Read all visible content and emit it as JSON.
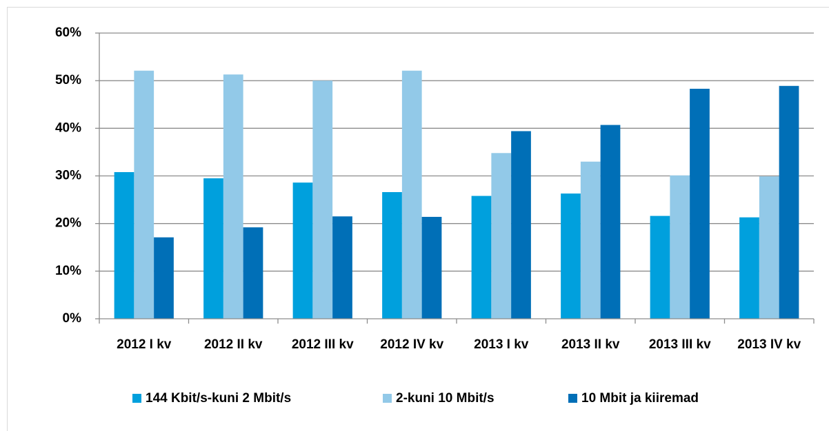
{
  "chart_data": {
    "type": "bar",
    "categories": [
      "2012 I kv",
      "2012 II kv",
      "2012 III kv",
      "2012 IV kv",
      "2013 I kv",
      "2013 II kv",
      "2013 III kv",
      "2013 IV kv"
    ],
    "series": [
      {
        "name": "144 Kbit/s-kuni 2 Mbit/s",
        "color": "#00a0dd",
        "values": [
          30.8,
          29.5,
          28.6,
          26.6,
          25.8,
          26.3,
          21.6,
          21.3
        ]
      },
      {
        "name": "2-kuni 10 Mbit/s",
        "color": "#92c9e8",
        "values": [
          52.1,
          51.3,
          50.0,
          52.1,
          34.8,
          33.0,
          30.1,
          29.9
        ]
      },
      {
        "name": "10 Mbit ja kiiremad",
        "color": "#006fb7",
        "values": [
          17.1,
          19.2,
          21.5,
          21.4,
          39.4,
          40.7,
          48.3,
          48.9
        ]
      }
    ],
    "ylim": [
      0,
      60
    ],
    "yticks": [
      {
        "value": 0,
        "label": "0%"
      },
      {
        "value": 10,
        "label": "10%"
      },
      {
        "value": 20,
        "label": "20%"
      },
      {
        "value": 30,
        "label": "30%"
      },
      {
        "value": 40,
        "label": "40%"
      },
      {
        "value": 50,
        "label": "50%"
      },
      {
        "value": 60,
        "label": "60%"
      }
    ],
    "grid": true,
    "legend": "bottom"
  }
}
